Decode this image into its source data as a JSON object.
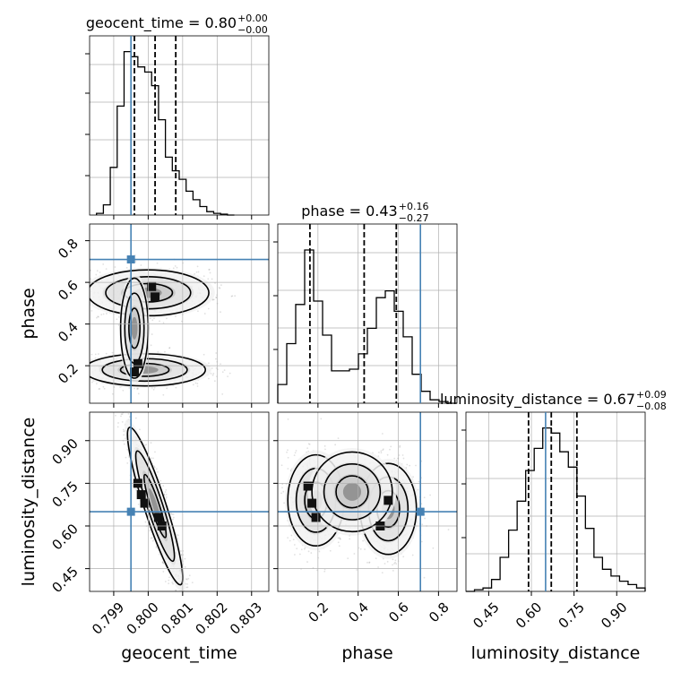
{
  "chart_data": [
    {
      "type": "histogram",
      "parameter": "geocent_time",
      "title": {
        "prefix": "geocent_time = ",
        "median": "0.80",
        "plus": "+0.00",
        "minus": "−0.00"
      },
      "bin_edges": [
        0.7985,
        0.7987,
        0.7989,
        0.7991,
        0.7993,
        0.7995,
        0.7997,
        0.7999,
        0.8001,
        0.8003,
        0.8005,
        0.8007,
        0.8009,
        0.8011,
        0.8013,
        0.8015,
        0.8017,
        0.8019,
        0.8021,
        0.8023,
        0.8025
      ],
      "counts": [
        0.01,
        0.06,
        0.28,
        0.64,
        0.96,
        0.93,
        0.87,
        0.84,
        0.76,
        0.56,
        0.34,
        0.26,
        0.21,
        0.14,
        0.09,
        0.05,
        0.02,
        0.01,
        0.005,
        0.0
      ],
      "quantiles": [
        0.7996,
        0.8002,
        0.8008
      ],
      "truth": 0.7995,
      "xlim": [
        0.7983,
        0.8035
      ],
      "xticks": [
        "0.799",
        "0.800",
        "0.801",
        "0.802",
        "0.803"
      ],
      "xtick_values": [
        0.799,
        0.8,
        0.801,
        0.802,
        0.803
      ],
      "xlabel": "geocent_time"
    },
    {
      "type": "scatter_contour",
      "x": "geocent_time",
      "y": "phase",
      "truth": [
        0.7995,
        0.71
      ],
      "xlim": [
        0.7983,
        0.8035
      ],
      "ylim": [
        0.02,
        0.88
      ],
      "yticks": [
        "0.2",
        "0.4",
        "0.6",
        "0.8"
      ],
      "ytick_values": [
        0.2,
        0.4,
        0.6,
        0.8
      ],
      "ylabel": "phase",
      "clusters": [
        {
          "cx": 0.8,
          "cy": 0.55,
          "sx": 0.00055,
          "sy": 0.1,
          "n": 900,
          "tilt": 0.02
        },
        {
          "cx": 0.7999,
          "cy": 0.18,
          "sx": 0.00055,
          "sy": 0.07,
          "n": 800,
          "tilt": -0.01
        },
        {
          "cx": 0.7996,
          "cy": 0.38,
          "sx": 0.0002,
          "sy": 0.12,
          "n": 250,
          "tilt": 0.0
        }
      ],
      "dark_cells": [
        [
          0.7996,
          0.17
        ],
        [
          0.8001,
          0.58
        ],
        [
          0.7997,
          0.21
        ],
        [
          0.8002,
          0.53
        ]
      ]
    },
    {
      "type": "histogram",
      "parameter": "phase",
      "title": {
        "prefix": "phase = ",
        "median": "0.43",
        "plus": "+0.16",
        "minus": "−0.27"
      },
      "bin_edges": [
        0.0,
        0.0446,
        0.0892,
        0.1338,
        0.1784,
        0.223,
        0.2676,
        0.3122,
        0.3568,
        0.4014,
        0.446,
        0.4906,
        0.5352,
        0.5798,
        0.6244,
        0.669,
        0.7136,
        0.7582,
        0.8028,
        0.8474,
        0.892
      ],
      "counts": [
        0.11,
        0.35,
        0.58,
        0.9,
        0.6,
        0.4,
        0.19,
        0.19,
        0.2,
        0.29,
        0.44,
        0.62,
        0.66,
        0.54,
        0.39,
        0.17,
        0.07,
        0.02,
        0.01,
        0.0
      ],
      "quantiles": [
        0.16,
        0.43,
        0.59
      ],
      "truth": 0.71,
      "xlim": [
        0.0,
        0.892
      ],
      "xticks": [
        "0.2",
        "0.4",
        "0.6",
        "0.8"
      ],
      "xtick_values": [
        0.2,
        0.4,
        0.6,
        0.8
      ],
      "xlabel": "phase"
    },
    {
      "type": "scatter_contour",
      "x": "geocent_time",
      "y": "luminosity_distance",
      "truth": [
        0.7995,
        0.65
      ],
      "xlim": [
        0.7983,
        0.8035
      ],
      "ylim": [
        0.37,
        1.0
      ],
      "yticks": [
        "0.45",
        "0.60",
        "0.75",
        "0.90"
      ],
      "ytick_values": [
        0.45,
        0.6,
        0.75,
        0.9
      ],
      "ylabel": "luminosity_distance",
      "clusters": [
        {
          "cx": 0.8002,
          "cy": 0.67,
          "sx": 0.00075,
          "sy": 0.035,
          "n": 1700,
          "tilt": -72.0
        }
      ],
      "dark_cells": [
        [
          0.7997,
          0.75
        ],
        [
          0.7998,
          0.71
        ],
        [
          0.7999,
          0.68
        ],
        [
          0.8003,
          0.63
        ],
        [
          0.8004,
          0.6
        ]
      ]
    },
    {
      "type": "scatter_contour",
      "x": "phase",
      "y": "luminosity_distance",
      "truth": [
        0.71,
        0.65
      ],
      "xlim": [
        0.0,
        0.892
      ],
      "ylim": [
        0.37,
        1.0
      ],
      "ylabel": "",
      "clusters": [
        {
          "cx": 0.19,
          "cy": 0.69,
          "sx": 0.07,
          "sy": 0.08,
          "n": 900,
          "tilt": 0.0
        },
        {
          "cx": 0.55,
          "cy": 0.66,
          "sx": 0.07,
          "sy": 0.08,
          "n": 900,
          "tilt": 0.0
        },
        {
          "cx": 0.37,
          "cy": 0.72,
          "sx": 0.1,
          "sy": 0.07,
          "n": 250,
          "tilt": 0.0
        }
      ],
      "dark_cells": [
        [
          0.15,
          0.74
        ],
        [
          0.17,
          0.68
        ],
        [
          0.51,
          0.6
        ],
        [
          0.55,
          0.69
        ],
        [
          0.19,
          0.63
        ]
      ]
    },
    {
      "type": "histogram",
      "parameter": "luminosity_distance",
      "title": {
        "prefix": "luminosity_distance = ",
        "median": "0.67",
        "plus": "+0.09",
        "minus": "−0.08"
      },
      "bin_edges": [
        0.37,
        0.4,
        0.43,
        0.46,
        0.49,
        0.52,
        0.55,
        0.58,
        0.61,
        0.64,
        0.67,
        0.7,
        0.73,
        0.76,
        0.79,
        0.82,
        0.85,
        0.88,
        0.91,
        0.94,
        0.97,
        1.0
      ],
      "counts": [
        0.0,
        0.01,
        0.02,
        0.07,
        0.2,
        0.36,
        0.53,
        0.71,
        0.84,
        0.96,
        0.93,
        0.82,
        0.73,
        0.56,
        0.37,
        0.2,
        0.13,
        0.09,
        0.06,
        0.04,
        0.02
      ],
      "quantiles": [
        0.59,
        0.67,
        0.76
      ],
      "truth": 0.65,
      "xlim": [
        0.37,
        1.0
      ],
      "xticks": [
        "0.45",
        "0.60",
        "0.75",
        "0.90"
      ],
      "xtick_values": [
        0.45,
        0.6,
        0.75,
        0.9
      ],
      "xlabel": "luminosity_distance"
    }
  ],
  "colors": {
    "truth": "#4682b4",
    "line": "#000000",
    "grid": "#b0b0b0"
  }
}
